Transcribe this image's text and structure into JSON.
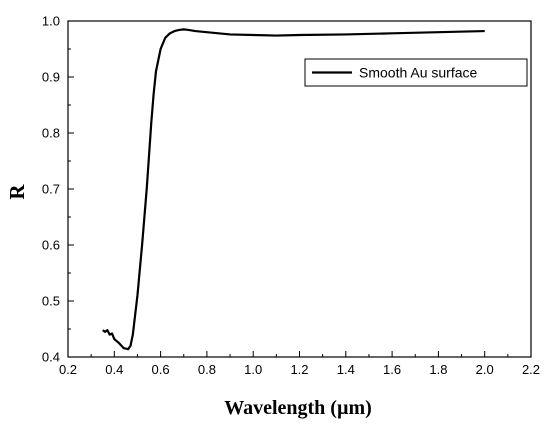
{
  "chart_data": {
    "type": "line",
    "xlabel": "Wavelength (µm)",
    "ylabel": "R",
    "xlim": [
      0.2,
      2.2
    ],
    "ylim": [
      0.4,
      1.0
    ],
    "xticks": [
      "0.2",
      "0.4",
      "0.6",
      "0.8",
      "1.0",
      "1.2",
      "1.4",
      "1.6",
      "1.8",
      "2.0",
      "2.2"
    ],
    "yticks": [
      "0.4",
      "0.5",
      "0.6",
      "0.7",
      "0.8",
      "0.9",
      "1.0"
    ],
    "grid": false,
    "legend_position": "top-right",
    "series": [
      {
        "name": "Smooth Au surface",
        "color": "#000000",
        "x": [
          0.35,
          0.36,
          0.37,
          0.38,
          0.39,
          0.4,
          0.42,
          0.44,
          0.46,
          0.47,
          0.48,
          0.5,
          0.52,
          0.54,
          0.55,
          0.56,
          0.57,
          0.58,
          0.6,
          0.62,
          0.64,
          0.66,
          0.68,
          0.7,
          0.72,
          0.75,
          0.8,
          0.85,
          0.9,
          1.0,
          1.1,
          1.2,
          1.4,
          1.6,
          1.8,
          2.0
        ],
        "y": [
          0.448,
          0.445,
          0.448,
          0.44,
          0.442,
          0.432,
          0.425,
          0.416,
          0.414,
          0.42,
          0.44,
          0.51,
          0.6,
          0.7,
          0.76,
          0.82,
          0.87,
          0.91,
          0.95,
          0.97,
          0.978,
          0.982,
          0.984,
          0.985,
          0.984,
          0.982,
          0.98,
          0.978,
          0.976,
          0.975,
          0.974,
          0.975,
          0.976,
          0.978,
          0.98,
          0.982
        ]
      }
    ]
  }
}
